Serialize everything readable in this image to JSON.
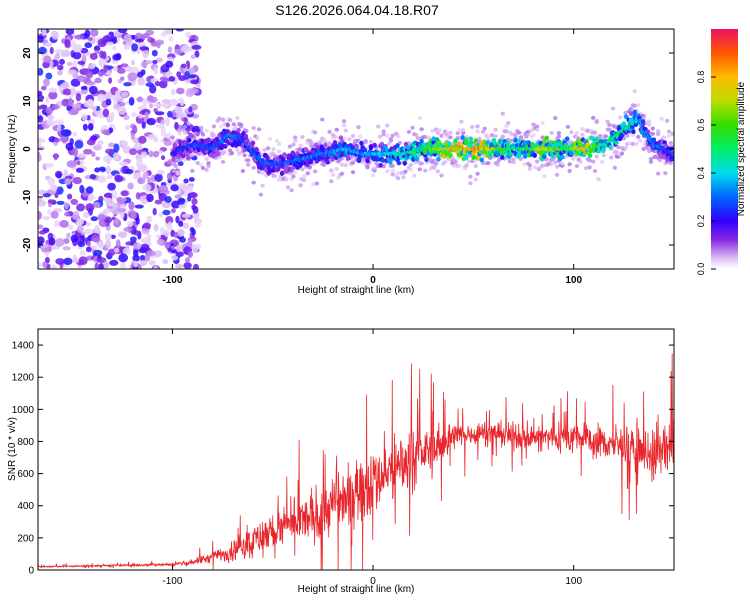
{
  "figure": {
    "title": "S126.2026.064.04.18.R07"
  },
  "chart_data": [
    {
      "type": "heatmap",
      "xlabel": "Height of straight line (km)",
      "ylabel": "Frequency (Hz)",
      "xlim": [
        -167,
        150
      ],
      "ylim": [
        -25,
        25
      ],
      "xticks": [
        -100,
        0,
        100
      ],
      "yticks": [
        -20,
        -10,
        0,
        10,
        20
      ],
      "colorbar": {
        "label": "Normalized spectral amplitude",
        "range": [
          0,
          1
        ],
        "ticks": [
          0.0,
          0.2,
          0.4,
          0.6,
          0.8
        ]
      },
      "ridge": {
        "description_free": true,
        "x": [
          -100,
          -90,
          -80,
          -72,
          -65,
          -55,
          -45,
          -35,
          -25,
          -15,
          -5,
          5,
          15,
          25,
          35,
          45,
          55,
          65,
          75,
          85,
          95,
          105,
          115,
          122,
          128,
          132,
          136,
          140,
          145,
          150
        ],
        "y": [
          -1,
          1,
          0,
          3,
          2,
          -3,
          -3,
          -2,
          -1,
          0,
          -1,
          -1,
          -1,
          0,
          0,
          0,
          0,
          0,
          0,
          0,
          0,
          0,
          1,
          3,
          5,
          6,
          3,
          1,
          0,
          -1
        ],
        "amp": [
          0.25,
          0.3,
          0.3,
          0.35,
          0.3,
          0.35,
          0.3,
          0.35,
          0.35,
          0.4,
          0.4,
          0.45,
          0.5,
          0.6,
          0.85,
          0.9,
          0.9,
          0.6,
          0.55,
          0.85,
          0.6,
          0.9,
          0.5,
          0.6,
          0.5,
          0.45,
          0.4,
          0.35,
          0.3,
          0.3
        ]
      },
      "noise_region": {
        "x_from": -167,
        "x_to": -95
      }
    },
    {
      "type": "line",
      "xlabel": "Height of straight line (km)",
      "ylabel": "SNR (10 * v/v)",
      "xlim": [
        -167,
        150
      ],
      "ylim": [
        0,
        1500
      ],
      "xticks": [
        -100,
        0,
        100
      ],
      "yticks": [
        0,
        200,
        400,
        600,
        800,
        1000,
        1200,
        1400
      ],
      "color": "#e8262b",
      "envelope": {
        "x": [
          -167,
          -120,
          -100,
          -90,
          -80,
          -70,
          -60,
          -50,
          -40,
          -30,
          -20,
          -10,
          0,
          10,
          20,
          30,
          40,
          50,
          60,
          70,
          80,
          90,
          100,
          110,
          120,
          130,
          140,
          150
        ],
        "mean": [
          20,
          30,
          35,
          50,
          80,
          120,
          180,
          240,
          280,
          330,
          400,
          480,
          560,
          620,
          700,
          760,
          830,
          850,
          860,
          830,
          820,
          830,
          830,
          800,
          780,
          760,
          730,
          760
        ],
        "spread": [
          8,
          12,
          15,
          30,
          60,
          100,
          160,
          200,
          220,
          260,
          300,
          320,
          350,
          300,
          260,
          200,
          140,
          120,
          100,
          130,
          150,
          160,
          160,
          160,
          180,
          220,
          260,
          300
        ]
      }
    }
  ],
  "colors": {
    "trace": "#e8262b",
    "axes": "#000000",
    "grid": "none"
  }
}
